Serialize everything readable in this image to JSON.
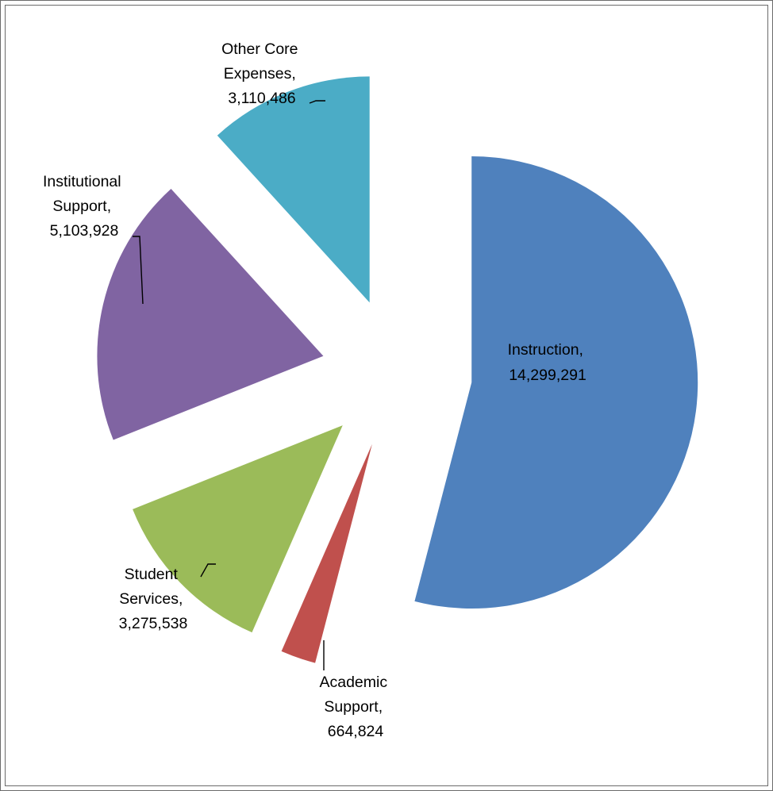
{
  "chart_data": {
    "type": "pie",
    "title": "",
    "exploded": true,
    "slices": [
      {
        "label": "Instruction",
        "value": 14299291,
        "display": "14,299,291",
        "color": "#4F81BD"
      },
      {
        "label": "Academic Support",
        "value": 664824,
        "display": "664,824",
        "color": "#C0504D"
      },
      {
        "label": "Student Services",
        "value": 3275538,
        "display": "3,275,538",
        "color": "#9BBB59"
      },
      {
        "label": "Institutional Support",
        "value": 5103928,
        "display": "5,103,928",
        "color": "#8064A2"
      },
      {
        "label": "Other Core Expenses",
        "value": 3110486,
        "display": "3,110,486",
        "color": "#4BACC6"
      }
    ]
  },
  "labels": {
    "instruction": {
      "line1": "Instruction,",
      "line2": "14,299,291"
    },
    "academic_support": {
      "line1": "Academic",
      "line2": "Support,",
      "line3": "664,824"
    },
    "student_services": {
      "line1": "Student",
      "line2": "Services,",
      "line3": "3,275,538"
    },
    "institutional_support": {
      "line1": "Institutional",
      "line2": "Support,",
      "line3": "5,103,928"
    },
    "other_core": {
      "line1": "Other Core",
      "line2": "Expenses,",
      "line3": "3,110,486"
    }
  }
}
